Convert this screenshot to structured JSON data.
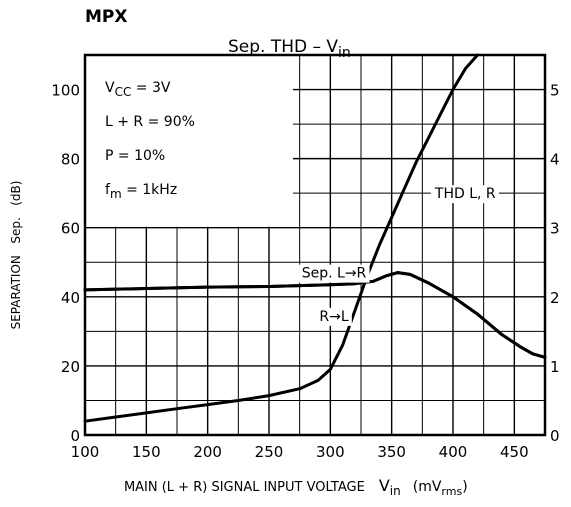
{
  "header": {
    "label": "MPX"
  },
  "chart_data": {
    "type": "line",
    "title": "Sep. THD  –  V",
    "title_sub": "in",
    "xlabel": "MAIN (L + R) SIGNAL INPUT VOLTAGE",
    "xlabel_var": "V",
    "xlabel_var_sub": "in",
    "xlabel_unit_open": "(mV",
    "xlabel_unit_sub": "rms",
    "xlabel_unit_close": ")",
    "ylabel_left": "SEPARATION   Sep.   (dB)",
    "ylabel_right": "",
    "x_ticks": [
      100,
      150,
      200,
      250,
      300,
      350,
      400,
      450
    ],
    "xlim": [
      100,
      475
    ],
    "y_left_ticks": [
      0,
      20,
      40,
      60,
      80,
      100
    ],
    "ylim_left": [
      0,
      110
    ],
    "y_right_ticks": [
      0,
      1,
      2,
      3,
      4,
      5
    ],
    "ylim_right": [
      0,
      5.5
    ],
    "grid": true,
    "conditions": [
      {
        "main": "V",
        "sub": "CC",
        "rest": " = 3V"
      },
      {
        "main": "L + R = 90%",
        "sub": "",
        "rest": ""
      },
      {
        "main": "P = 10%",
        "sub": "",
        "rest": ""
      },
      {
        "main": "f",
        "sub": "m",
        "rest": " = 1kHz"
      }
    ],
    "series": [
      {
        "name": "Sep. L→R",
        "axis": "left",
        "x": [
          100,
          150,
          200,
          250,
          300,
          320,
          335,
          345,
          355,
          365,
          380,
          400,
          420,
          440,
          455,
          465,
          475
        ],
        "y": [
          42,
          42.4,
          42.8,
          43,
          43.5,
          43.8,
          44.5,
          46,
          47,
          46.5,
          44,
          40,
          35,
          29,
          25.5,
          23.5,
          22.5
        ]
      },
      {
        "name": "R→L",
        "axis": "left",
        "x": [
          100,
          150,
          200,
          250,
          300,
          320,
          335,
          345,
          355,
          365,
          380,
          400,
          420,
          440,
          455,
          465,
          475
        ],
        "y": [
          42,
          42.4,
          42.8,
          43,
          43.5,
          43.8,
          44.5,
          46,
          47,
          46.5,
          44,
          40,
          35,
          29,
          25.5,
          23.5,
          22.5
        ]
      },
      {
        "name": "THD L, R",
        "axis": "right",
        "x": [
          100,
          125,
          150,
          175,
          200,
          225,
          250,
          275,
          290,
          300,
          310,
          320,
          330,
          340,
          350,
          360,
          370,
          380,
          390,
          400,
          410,
          420
        ],
        "y": [
          0.2,
          0.26,
          0.32,
          0.38,
          0.44,
          0.5,
          0.57,
          0.67,
          0.79,
          0.95,
          1.3,
          1.8,
          2.3,
          2.75,
          3.15,
          3.55,
          3.95,
          4.3,
          4.65,
          5.0,
          5.3,
          5.55
        ]
      }
    ],
    "annotations": [
      {
        "text": "THD L, R",
        "x": 410,
        "y_left": 70
      },
      {
        "text": "Sep. L→R",
        "x": 303,
        "y_left": 47
      },
      {
        "text": "R→L",
        "x": 303,
        "y_left": 34.5
      }
    ]
  }
}
